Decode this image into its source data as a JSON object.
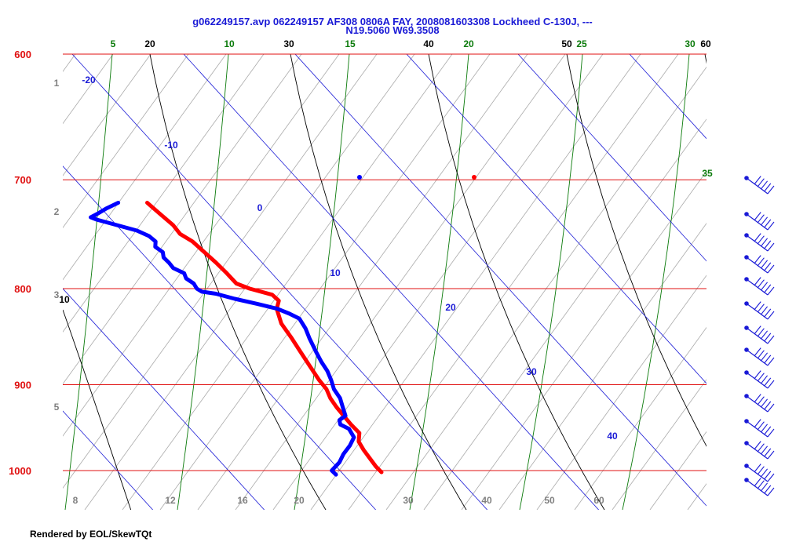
{
  "header": {
    "title_line1": "g062249157.avp 062249157 AF308 0806A FAY, 2008081603308 Lockheed C-130J, ---",
    "title_line2": "N19.5060 W69.3508"
  },
  "footer": {
    "text": "Rendered by EOL/SkewTQt"
  },
  "colors": {
    "isobar": "#e01010",
    "isotherm": "#1a1ad6",
    "dry_adiabat": "#000000",
    "moist_adiabat": "#0a7a0a",
    "mixing_ratio": "#888888",
    "temperature": "#ff0000",
    "dewpoint": "#0000ff",
    "wind": "#1a1ad6"
  },
  "chart_data": {
    "type": "skew-t",
    "pressure_labels": [
      {
        "p": 600,
        "text": "600"
      },
      {
        "p": 700,
        "text": "700"
      },
      {
        "p": 800,
        "text": "800"
      },
      {
        "p": 900,
        "text": "900"
      },
      {
        "p": 1000,
        "text": "1000"
      }
    ],
    "isotherm_labels": [
      {
        "t": -20,
        "p": 620,
        "text": "-20"
      },
      {
        "t": -10,
        "p": 675,
        "text": "-10"
      },
      {
        "t": 0,
        "p": 725,
        "text": "0"
      },
      {
        "t": 10,
        "p": 790,
        "text": "10"
      },
      {
        "t": 20,
        "p": 820,
        "text": "20"
      },
      {
        "t": 30,
        "p": 895,
        "text": "30"
      },
      {
        "t": 40,
        "p": 965,
        "text": "40"
      }
    ],
    "dry_adiabat_labels": [
      "20",
      "30",
      "40",
      "50",
      "60",
      "10"
    ],
    "moist_adiabat_labels": [
      "5",
      "10",
      "15",
      "20",
      "25",
      "30",
      "35"
    ],
    "mixing_ratio_labels": [
      "8",
      "12",
      "16",
      "20",
      "30",
      "40",
      "50",
      "60"
    ],
    "height_labels": [
      "1",
      "2",
      "3",
      "5"
    ],
    "temperature": [
      {
        "p": 1002,
        "t": 25.9
      },
      {
        "p": 995,
        "t": 25.5
      },
      {
        "p": 985,
        "t": 25.1
      },
      {
        "p": 975,
        "t": 24.7
      },
      {
        "p": 965,
        "t": 24.4
      },
      {
        "p": 955,
        "t": 24.6
      },
      {
        "p": 945,
        "t": 24.0
      },
      {
        "p": 935,
        "t": 23.5
      },
      {
        "p": 925,
        "t": 23.0
      },
      {
        "p": 915,
        "t": 22.6
      },
      {
        "p": 905,
        "t": 22.4
      },
      {
        "p": 895,
        "t": 21.9
      },
      {
        "p": 880,
        "t": 21.3
      },
      {
        "p": 865,
        "t": 20.7
      },
      {
        "p": 850,
        "t": 20.1
      },
      {
        "p": 835,
        "t": 19.4
      },
      {
        "p": 820,
        "t": 19.2
      },
      {
        "p": 812,
        "t": 19.5
      },
      {
        "p": 806,
        "t": 19.0
      },
      {
        "p": 800,
        "t": 17.1
      },
      {
        "p": 795,
        "t": 16.0
      },
      {
        "p": 785,
        "t": 15.3
      },
      {
        "p": 775,
        "t": 14.5
      },
      {
        "p": 765,
        "t": 13.6
      },
      {
        "p": 755,
        "t": 12.7
      },
      {
        "p": 748,
        "t": 11.7
      },
      {
        "p": 740,
        "t": 11.2
      },
      {
        "p": 730,
        "t": 10.2
      },
      {
        "p": 720,
        "t": 9.2
      }
    ],
    "dewpoint": [
      {
        "p": 1005,
        "t": 20.8
      },
      {
        "p": 1000,
        "t": 20.5
      },
      {
        "p": 990,
        "t": 21.3
      },
      {
        "p": 980,
        "t": 21.8
      },
      {
        "p": 970,
        "t": 22.5
      },
      {
        "p": 960,
        "t": 23.0
      },
      {
        "p": 950,
        "t": 22.7
      },
      {
        "p": 945,
        "t": 22.0
      },
      {
        "p": 940,
        "t": 22.0
      },
      {
        "p": 935,
        "t": 22.6
      },
      {
        "p": 925,
        "t": 22.5
      },
      {
        "p": 915,
        "t": 22.4
      },
      {
        "p": 905,
        "t": 22.0
      },
      {
        "p": 895,
        "t": 21.9
      },
      {
        "p": 885,
        "t": 21.7
      },
      {
        "p": 875,
        "t": 21.3
      },
      {
        "p": 865,
        "t": 21.0
      },
      {
        "p": 850,
        "t": 20.6
      },
      {
        "p": 840,
        "t": 20.4
      },
      {
        "p": 830,
        "t": 20.0
      },
      {
        "p": 825,
        "t": 19.2
      },
      {
        "p": 820,
        "t": 18.2
      },
      {
        "p": 815,
        "t": 16.5
      },
      {
        "p": 810,
        "t": 14.6
      },
      {
        "p": 805,
        "t": 13.0
      },
      {
        "p": 803,
        "t": 11.8
      },
      {
        "p": 800,
        "t": 11.4
      },
      {
        "p": 795,
        "t": 11.2
      },
      {
        "p": 790,
        "t": 10.6
      },
      {
        "p": 785,
        "t": 10.5
      },
      {
        "p": 780,
        "t": 9.6
      },
      {
        "p": 775,
        "t": 9.3
      },
      {
        "p": 770,
        "t": 8.9
      },
      {
        "p": 765,
        "t": 8.9
      },
      {
        "p": 760,
        "t": 8.3
      },
      {
        "p": 755,
        "t": 8.4
      },
      {
        "p": 750,
        "t": 7.9
      },
      {
        "p": 745,
        "t": 6.9
      },
      {
        "p": 740,
        "t": 5.2
      },
      {
        "p": 735,
        "t": 3.5
      },
      {
        "p": 733,
        "t": 3.0
      },
      {
        "p": 730,
        "t": 3.6
      },
      {
        "p": 725,
        "t": 4.5
      },
      {
        "p": 720,
        "t": 5.6
      }
    ],
    "surface_markers": {
      "temperature_at_700": {
        "p": 700,
        "t": 8.5
      },
      "dewpoint_at_700": {
        "p": 700,
        "t": -1.5
      }
    },
    "wind_barbs": [
      {
        "p": 705
      },
      {
        "p": 730
      },
      {
        "p": 750
      },
      {
        "p": 770
      },
      {
        "p": 790
      },
      {
        "p": 810
      },
      {
        "p": 830
      },
      {
        "p": 850
      },
      {
        "p": 875
      },
      {
        "p": 900
      },
      {
        "p": 925
      },
      {
        "p": 950
      },
      {
        "p": 980
      },
      {
        "p": 1005
      }
    ]
  }
}
